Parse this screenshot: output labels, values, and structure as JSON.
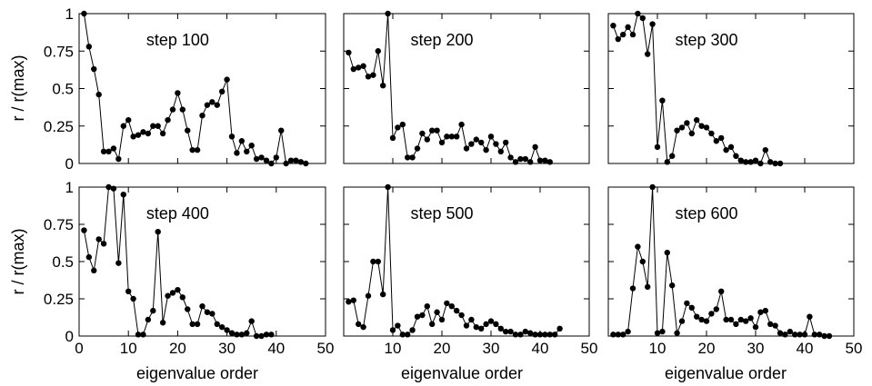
{
  "figure": {
    "ylabel": "r / r(max)",
    "xlabel": "eigenvalue order"
  },
  "chart_data": [
    {
      "type": "line",
      "title": "step 100",
      "xlim": [
        0,
        50
      ],
      "ylim": [
        0,
        1
      ],
      "x_ticks": [
        "0",
        "10",
        "20",
        "30",
        "40",
        "50"
      ],
      "y_ticks": [
        "0",
        "0.25",
        "0.5",
        "0.75",
        "1"
      ],
      "series": [
        {
          "x": [
            1,
            2,
            3,
            4,
            5,
            6,
            7,
            8,
            9,
            10,
            11,
            12,
            13,
            14,
            15,
            16,
            17,
            18,
            19,
            20,
            21,
            22,
            23,
            24,
            25,
            26,
            27,
            28,
            29,
            30,
            31,
            32,
            33,
            34,
            35,
            36,
            37,
            38,
            39,
            40,
            41,
            42,
            43,
            44,
            45,
            46
          ],
          "values": [
            1.0,
            0.78,
            0.63,
            0.46,
            0.08,
            0.08,
            0.1,
            0.03,
            0.25,
            0.29,
            0.18,
            0.19,
            0.21,
            0.2,
            0.25,
            0.25,
            0.2,
            0.29,
            0.36,
            0.47,
            0.36,
            0.22,
            0.09,
            0.09,
            0.32,
            0.39,
            0.41,
            0.39,
            0.48,
            0.56,
            0.18,
            0.07,
            0.15,
            0.08,
            0.12,
            0.03,
            0.04,
            0.02,
            0.0,
            0.04,
            0.22,
            0.0,
            0.02,
            0.02,
            0.01,
            0.0
          ]
        }
      ]
    },
    {
      "type": "line",
      "title": "step 200",
      "xlim": [
        0,
        50
      ],
      "ylim": [
        0,
        1
      ],
      "x_ticks": [
        "0",
        "10",
        "20",
        "30",
        "40",
        "50"
      ],
      "y_ticks": [
        "0",
        "0.25",
        "0.5",
        "0.75",
        "1"
      ],
      "series": [
        {
          "x": [
            1,
            2,
            3,
            4,
            5,
            6,
            7,
            8,
            9,
            10,
            11,
            12,
            13,
            14,
            15,
            16,
            17,
            18,
            19,
            20,
            21,
            22,
            23,
            24,
            25,
            26,
            27,
            28,
            29,
            30,
            31,
            32,
            33,
            34,
            35,
            36,
            37,
            38,
            39,
            40,
            41,
            42
          ],
          "values": [
            0.74,
            0.63,
            0.64,
            0.65,
            0.58,
            0.59,
            0.75,
            0.52,
            1.0,
            0.17,
            0.24,
            0.26,
            0.04,
            0.04,
            0.1,
            0.2,
            0.16,
            0.22,
            0.22,
            0.14,
            0.18,
            0.18,
            0.18,
            0.26,
            0.1,
            0.13,
            0.16,
            0.14,
            0.09,
            0.18,
            0.13,
            0.08,
            0.14,
            0.04,
            0.01,
            0.03,
            0.03,
            0.01,
            0.11,
            0.02,
            0.02,
            0.01
          ]
        }
      ]
    },
    {
      "type": "line",
      "title": "step 300",
      "xlim": [
        0,
        50
      ],
      "ylim": [
        0,
        1
      ],
      "x_ticks": [
        "0",
        "10",
        "20",
        "30",
        "40",
        "50"
      ],
      "y_ticks": [
        "0",
        "0.25",
        "0.5",
        "0.75",
        "1"
      ],
      "series": [
        {
          "x": [
            1,
            2,
            3,
            4,
            5,
            6,
            7,
            8,
            9,
            10,
            11,
            12,
            13,
            14,
            15,
            16,
            17,
            18,
            19,
            20,
            21,
            22,
            23,
            24,
            25,
            26,
            27,
            28,
            29,
            30,
            31,
            32,
            33,
            34,
            35
          ],
          "values": [
            0.92,
            0.83,
            0.86,
            0.91,
            0.86,
            1.0,
            0.97,
            0.73,
            0.93,
            0.11,
            0.42,
            0.01,
            0.05,
            0.22,
            0.24,
            0.27,
            0.2,
            0.29,
            0.25,
            0.24,
            0.2,
            0.15,
            0.17,
            0.09,
            0.11,
            0.05,
            0.02,
            0.01,
            0.01,
            0.02,
            0.0,
            0.09,
            0.01,
            0.0,
            0.0
          ]
        }
      ]
    },
    {
      "type": "line",
      "title": "step 400",
      "xlim": [
        0,
        50
      ],
      "ylim": [
        0,
        1
      ],
      "x_ticks": [
        "0",
        "10",
        "20",
        "30",
        "40",
        "50"
      ],
      "y_ticks": [
        "0",
        "0.25",
        "0.5",
        "0.75",
        "1"
      ],
      "series": [
        {
          "x": [
            1,
            2,
            3,
            4,
            5,
            6,
            7,
            8,
            9,
            10,
            11,
            12,
            13,
            14,
            15,
            16,
            17,
            18,
            19,
            20,
            21,
            22,
            23,
            24,
            25,
            26,
            27,
            28,
            29,
            30,
            31,
            32,
            33,
            34,
            35,
            36,
            37,
            38,
            39
          ],
          "values": [
            0.71,
            0.53,
            0.44,
            0.65,
            0.62,
            1.0,
            0.99,
            0.49,
            0.95,
            0.3,
            0.25,
            0.01,
            0.01,
            0.11,
            0.17,
            0.7,
            0.09,
            0.27,
            0.29,
            0.31,
            0.26,
            0.18,
            0.08,
            0.08,
            0.2,
            0.16,
            0.15,
            0.08,
            0.06,
            0.04,
            0.02,
            0.01,
            0.01,
            0.02,
            0.1,
            0.0,
            0.0,
            0.01,
            0.01
          ]
        }
      ]
    },
    {
      "type": "line",
      "title": "step 500",
      "xlim": [
        0,
        50
      ],
      "ylim": [
        0,
        1
      ],
      "x_ticks": [
        "0",
        "10",
        "20",
        "30",
        "40",
        "50"
      ],
      "y_ticks": [
        "0",
        "0.25",
        "0.5",
        "0.75",
        "1"
      ],
      "series": [
        {
          "x": [
            1,
            2,
            3,
            4,
            5,
            6,
            7,
            8,
            9,
            10,
            11,
            12,
            13,
            14,
            15,
            16,
            17,
            18,
            19,
            20,
            21,
            22,
            23,
            24,
            25,
            26,
            27,
            28,
            29,
            30,
            31,
            32,
            33,
            34,
            35,
            36,
            37,
            38,
            39,
            40,
            41,
            42,
            43,
            44
          ],
          "values": [
            0.23,
            0.24,
            0.08,
            0.06,
            0.27,
            0.5,
            0.5,
            0.28,
            1.0,
            0.04,
            0.07,
            0.01,
            0.01,
            0.04,
            0.13,
            0.14,
            0.2,
            0.08,
            0.16,
            0.11,
            0.22,
            0.2,
            0.17,
            0.14,
            0.07,
            0.11,
            0.06,
            0.05,
            0.08,
            0.1,
            0.08,
            0.05,
            0.03,
            0.03,
            0.01,
            0.01,
            0.03,
            0.02,
            0.01,
            0.01,
            0.01,
            0.01,
            0.01,
            0.05
          ]
        }
      ]
    },
    {
      "type": "line",
      "title": "step 600",
      "xlim": [
        0,
        50
      ],
      "ylim": [
        0,
        1
      ],
      "x_ticks": [
        "0",
        "10",
        "20",
        "30",
        "40",
        "50"
      ],
      "y_ticks": [
        "0",
        "0.25",
        "0.5",
        "0.75",
        "1"
      ],
      "series": [
        {
          "x": [
            1,
            2,
            3,
            4,
            5,
            6,
            7,
            8,
            9,
            10,
            11,
            12,
            13,
            14,
            15,
            16,
            17,
            18,
            19,
            20,
            21,
            22,
            23,
            24,
            25,
            26,
            27,
            28,
            29,
            30,
            31,
            32,
            33,
            34,
            35,
            36,
            37,
            38,
            39,
            40,
            41,
            42,
            43,
            44,
            45
          ],
          "values": [
            0.01,
            0.01,
            0.01,
            0.03,
            0.32,
            0.6,
            0.5,
            0.33,
            1.0,
            0.02,
            0.03,
            0.56,
            0.34,
            0.02,
            0.1,
            0.22,
            0.19,
            0.13,
            0.11,
            0.1,
            0.15,
            0.18,
            0.3,
            0.11,
            0.11,
            0.08,
            0.11,
            0.1,
            0.12,
            0.06,
            0.16,
            0.17,
            0.08,
            0.07,
            0.02,
            0.01,
            0.03,
            0.01,
            0.01,
            0.01,
            0.13,
            0.01,
            0.01,
            0.0,
            0.0
          ]
        }
      ]
    }
  ]
}
